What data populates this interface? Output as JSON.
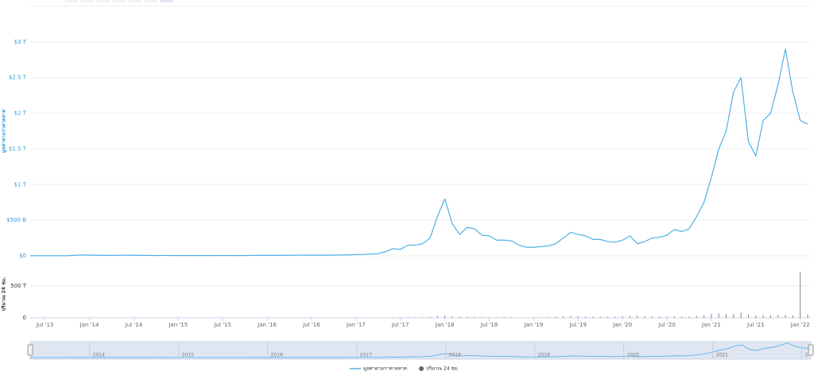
{
  "chart_data": {
    "type": "line",
    "y_label": "มูลค่าตามราคาตลาด",
    "y2_label": "ปริมาณ 24 ชม.",
    "x": [
      "2013-05",
      "2013-06",
      "2013-07",
      "2013-08",
      "2013-09",
      "2013-10",
      "2013-11",
      "2013-12",
      "2014-01",
      "2014-02",
      "2014-03",
      "2014-04",
      "2014-05",
      "2014-06",
      "2014-07",
      "2014-08",
      "2014-09",
      "2014-10",
      "2014-11",
      "2014-12",
      "2015-01",
      "2015-02",
      "2015-03",
      "2015-04",
      "2015-05",
      "2015-06",
      "2015-07",
      "2015-08",
      "2015-09",
      "2015-10",
      "2015-11",
      "2015-12",
      "2016-01",
      "2016-02",
      "2016-03",
      "2016-04",
      "2016-05",
      "2016-06",
      "2016-07",
      "2016-08",
      "2016-09",
      "2016-10",
      "2016-11",
      "2016-12",
      "2017-01",
      "2017-02",
      "2017-03",
      "2017-04",
      "2017-05",
      "2017-06",
      "2017-07",
      "2017-08",
      "2017-09",
      "2017-10",
      "2017-11",
      "2017-12",
      "2018-01",
      "2018-02",
      "2018-03",
      "2018-04",
      "2018-05",
      "2018-06",
      "2018-07",
      "2018-08",
      "2018-09",
      "2018-10",
      "2018-11",
      "2018-12",
      "2019-01",
      "2019-02",
      "2019-03",
      "2019-04",
      "2019-05",
      "2019-06",
      "2019-07",
      "2019-08",
      "2019-09",
      "2019-10",
      "2019-11",
      "2019-12",
      "2020-01",
      "2020-02",
      "2020-03",
      "2020-04",
      "2020-05",
      "2020-06",
      "2020-07",
      "2020-08",
      "2020-09",
      "2020-10",
      "2020-11",
      "2020-12",
      "2021-01",
      "2021-02",
      "2021-03",
      "2021-04",
      "2021-05",
      "2021-06",
      "2021-07",
      "2021-08",
      "2021-09",
      "2021-10",
      "2021-11",
      "2021-12",
      "2022-01",
      "2022-02"
    ],
    "series": [
      {
        "name": "มูลค่าตามราคาตลาด",
        "color": "#4fb0e6",
        "values": [
          0.0015,
          0.0013,
          0.0012,
          0.0013,
          0.0016,
          0.002,
          0.008,
          0.012,
          0.011,
          0.008,
          0.007,
          0.006,
          0.008,
          0.009,
          0.008,
          0.007,
          0.006,
          0.005,
          0.006,
          0.005,
          0.004,
          0.004,
          0.004,
          0.004,
          0.004,
          0.004,
          0.005,
          0.004,
          0.004,
          0.005,
          0.006,
          0.007,
          0.007,
          0.007,
          0.008,
          0.008,
          0.009,
          0.011,
          0.01,
          0.01,
          0.01,
          0.011,
          0.012,
          0.014,
          0.018,
          0.02,
          0.025,
          0.03,
          0.06,
          0.1,
          0.09,
          0.15,
          0.15,
          0.17,
          0.25,
          0.55,
          0.8,
          0.45,
          0.3,
          0.4,
          0.38,
          0.29,
          0.28,
          0.22,
          0.22,
          0.21,
          0.15,
          0.12,
          0.12,
          0.13,
          0.14,
          0.17,
          0.25,
          0.33,
          0.3,
          0.28,
          0.23,
          0.23,
          0.2,
          0.19,
          0.22,
          0.28,
          0.17,
          0.2,
          0.25,
          0.26,
          0.29,
          0.37,
          0.34,
          0.38,
          0.55,
          0.75,
          1.1,
          1.5,
          1.75,
          2.3,
          2.5,
          1.6,
          1.4,
          1.9,
          2.0,
          2.4,
          2.9,
          2.3,
          1.9,
          1.85
        ]
      },
      {
        "name": "ปริมาณ 24 ชม.",
        "color": "#666666",
        "axis": "y2",
        "values": [
          1,
          1,
          1,
          1,
          1,
          1,
          1,
          1,
          1,
          1,
          1,
          1,
          1,
          1,
          1,
          1,
          1,
          1,
          1,
          1,
          1,
          1,
          1,
          1,
          1,
          1,
          1,
          1,
          1,
          1,
          1,
          1,
          1,
          1,
          1,
          1,
          1,
          1,
          1,
          1,
          1,
          1,
          1,
          1,
          2,
          2,
          3,
          3,
          5,
          8,
          6,
          8,
          8,
          9,
          15,
          30,
          35,
          25,
          15,
          15,
          12,
          10,
          10,
          8,
          8,
          8,
          7,
          6,
          8,
          8,
          10,
          15,
          25,
          30,
          25,
          20,
          18,
          20,
          18,
          16,
          25,
          30,
          35,
          25,
          25,
          20,
          22,
          25,
          22,
          22,
          30,
          40,
          60,
          70,
          60,
          60,
          80,
          50,
          40,
          40,
          40,
          45,
          45,
          40,
          725,
          50
        ]
      }
    ],
    "xlim": [
      "2013-05",
      "2022-02"
    ],
    "xticks": [
      {
        "value": "2013-07",
        "label": "Jul '13"
      },
      {
        "value": "2014-01",
        "label": "Jan '14"
      },
      {
        "value": "2014-07",
        "label": "Jul '14"
      },
      {
        "value": "2015-01",
        "label": "Jan '15"
      },
      {
        "value": "2015-07",
        "label": "Jul '15"
      },
      {
        "value": "2016-01",
        "label": "Jan '16"
      },
      {
        "value": "2016-07",
        "label": "Jul '16"
      },
      {
        "value": "2017-01",
        "label": "Jan '17"
      },
      {
        "value": "2017-07",
        "label": "Jul '17"
      },
      {
        "value": "2018-01",
        "label": "Jan '18"
      },
      {
        "value": "2018-07",
        "label": "Jul '18"
      },
      {
        "value": "2019-01",
        "label": "Jan '19"
      },
      {
        "value": "2019-07",
        "label": "Jul '19"
      },
      {
        "value": "2020-01",
        "label": "Jan '20"
      },
      {
        "value": "2020-07",
        "label": "Jul '20"
      },
      {
        "value": "2021-01",
        "label": "Jan '21"
      },
      {
        "value": "2021-07",
        "label": "Jul '21"
      },
      {
        "value": "2022-01",
        "label": "Jan '22"
      }
    ],
    "ylim": [
      0,
      3.5
    ],
    "yticks": [
      {
        "value": 0,
        "label": "$0"
      },
      {
        "value": 0.5,
        "label": "$500 B"
      },
      {
        "value": 1,
        "label": "$1 T"
      },
      {
        "value": 1.5,
        "label": "$1.5 T"
      },
      {
        "value": 2,
        "label": "$2 T"
      },
      {
        "value": 2.5,
        "label": "$2.5 T"
      },
      {
        "value": 3,
        "label": "$3 T"
      }
    ],
    "y2lim": [
      0,
      1000
    ],
    "y2ticks": [
      0,
      {
        "value": 500,
        "label": "500 T"
      }
    ],
    "grid": true,
    "navigator_labels": [
      "2014",
      "2015",
      "2016",
      "2017",
      "2018",
      "2019",
      "2020",
      "2021",
      "2"
    ]
  }
}
